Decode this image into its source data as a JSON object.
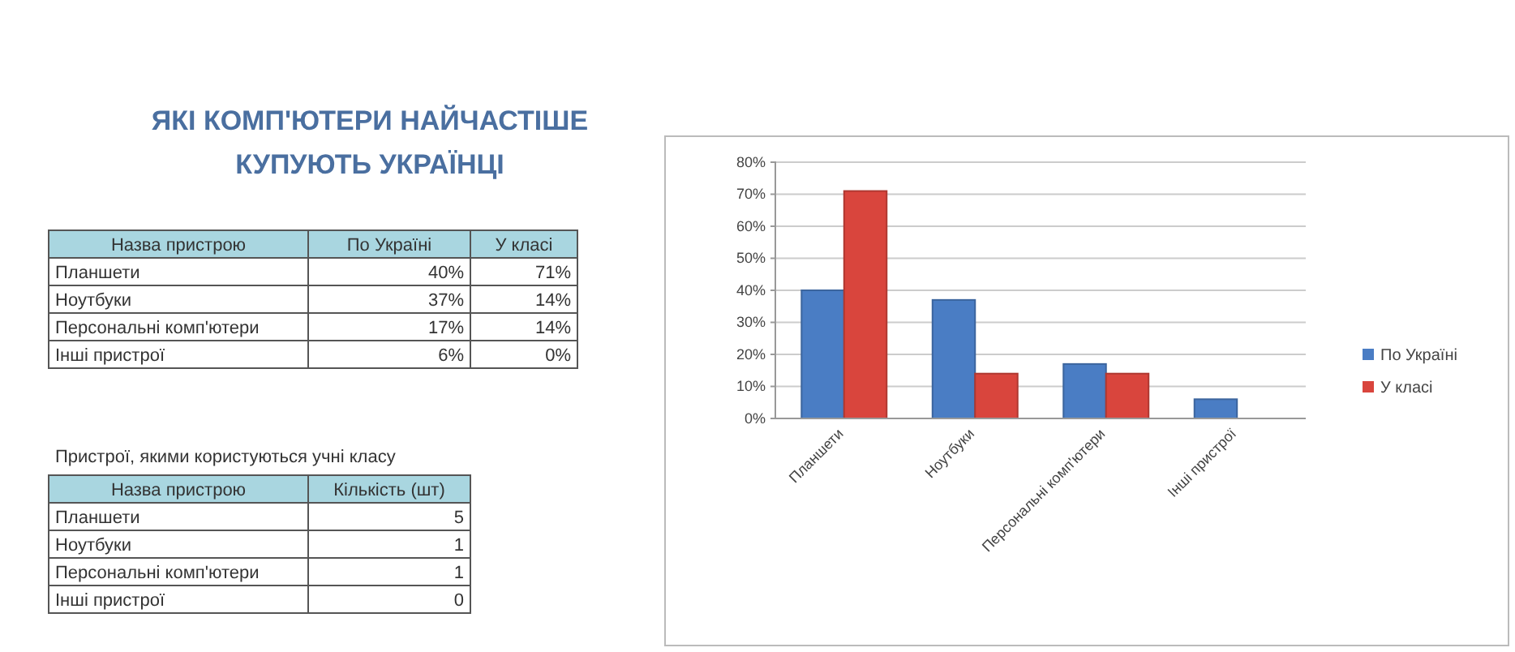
{
  "chart_data": [
    {
      "type": "bar",
      "title": "ЯКІ КОМП'ЮТЕРИ НАЙЧАСТІШЕ КУПУЮТЬ УКРАЇНЦІ",
      "categories": [
        "Планшети",
        "Ноутбуки",
        "Персональні комп'ютери",
        "Інші пристрої"
      ],
      "series": [
        {
          "name": "По Україні",
          "color": "#4a7dc4",
          "values": [
            40,
            37,
            17,
            6
          ]
        },
        {
          "name": "У класі",
          "color": "#d9453d",
          "values": [
            71,
            14,
            14,
            0
          ]
        }
      ],
      "ylim": [
        0,
        80
      ],
      "yticks": [
        {
          "value": 0,
          "label": "0%"
        },
        {
          "value": 10,
          "label": "10%"
        },
        {
          "value": 20,
          "label": "20%"
        },
        {
          "value": 30,
          "label": "30%"
        },
        {
          "value": 40,
          "label": "40%"
        },
        {
          "value": 50,
          "label": "50%"
        },
        {
          "value": 60,
          "label": "60%"
        },
        {
          "value": 70,
          "label": "70%"
        },
        {
          "value": 80,
          "label": "80%"
        }
      ],
      "grid": "y",
      "legend": "right"
    },
    {
      "type": "other",
      "annotations": [
        "Назва пристрою",
        "По Україні",
        "У класі",
        "Планшети",
        "40%",
        "71%",
        "Ноутбуки",
        "37%",
        "14%",
        "Персональні комп'ютери",
        "17%",
        "14%",
        "Інші пристрої",
        "6%",
        "0%"
      ]
    },
    {
      "type": "other",
      "title": "Пристрої, якими користуються учні класу",
      "annotations": [
        "Назва пристрою",
        "Кількість (шт)",
        "Планшети",
        "5",
        "Ноутбуки",
        "1",
        "Персональні комп'ютери",
        "1",
        "Інші пристрої",
        "0"
      ]
    }
  ]
}
